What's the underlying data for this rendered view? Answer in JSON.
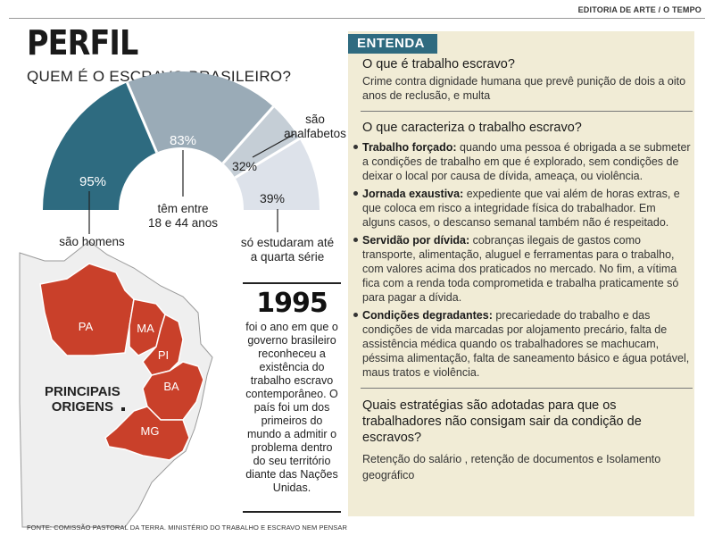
{
  "credit": "EDITORIA DE ARTE / O TEMPO",
  "title": "PERFIL",
  "subtitle": "QUEM É O ESCRAVO BRASILEIRO?",
  "stats": [
    {
      "value": "95%",
      "label": "são homens",
      "percent": 95,
      "color": "#2e6b80"
    },
    {
      "value": "83%",
      "label": "têm entre 18 e 44 anos",
      "percent": 83,
      "color": "#9aabb7"
    },
    {
      "value": "32%",
      "label": "são analfabetos",
      "percent": 32,
      "color": "#c5ced6"
    },
    {
      "value": "39%",
      "label": "só estudaram até a quarta série",
      "percent": 39,
      "color": "#dde2ea"
    }
  ],
  "stat_labels": {
    "homens": "são homens",
    "idade_l1": "têm entre",
    "idade_l2": "18 e 44 anos",
    "analf_l1": "são",
    "analf_l2": "analfabetos",
    "estudo_l1": "só estudaram até",
    "estudo_l2": "a quarta série"
  },
  "year": "1995",
  "year_text": "foi o ano em que o governo brasileiro reconheceu a existência do trabalho escravo contemporâneo. O país foi um dos primeiros do mundo a admitir o problema dentro do seu território diante das Nações Unidas.",
  "map": {
    "title_l1": "PRINCIPAIS",
    "title_l2": "ORIGENS",
    "states": [
      "PA",
      "MA",
      "PI",
      "BA",
      "MG"
    ],
    "highlight_color": "#c9402a",
    "base_color": "#efefef"
  },
  "source": "FONTE: COMISSÃO PASTORAL DA TERRA. MINISTÉRIO DO TRABALHO E ESCRAVO NEM PENSAR",
  "panel": {
    "tag": "ENTENDA",
    "q1": "O que é trabalho escravo?",
    "a1": "Crime contra dignidade humana que prevê punição de dois a oito anos de reclusão, e multa",
    "q2": "O que caracteriza o trabalho escravo?",
    "items": [
      {
        "term": "Trabalho forçado:",
        "text": " quando uma pessoa é obrigada a se submeter a condições de trabalho em que é explorado, sem condições de deixar o local por causa de dívida, ameaça, ou violência."
      },
      {
        "term": "Jornada exaustiva:",
        "text": " expediente que vai além de horas extras, e que coloca em risco a integridade física do trabalhador. Em alguns casos, o descanso semanal também não é respeitado."
      },
      {
        "term": "Servidão por dívida:",
        "text": " cobranças ilegais de gastos como transporte, alimentação, aluguel e ferramentas para o trabalho, com valores acima dos praticados no mercado. No fim, a vítima fica com a renda toda comprometida e trabalha praticamente só para pagar a dívida."
      },
      {
        "term": "Condições degradantes:",
        "text": " precariedade do trabalho e das condições de vida marcadas por alojamento precário, falta de assistência médica quando os trabalhadores se machucam, péssima alimentação, falta de saneamento básico e água potável, maus tratos e violência."
      }
    ],
    "q3": "Quais estratégias são adotadas para que os trabalhadores não consigam sair da condição de escravos?",
    "a3": "Retenção do salário , retenção de documentos e Isolamento geográfico",
    "color": "#2f6b80",
    "background": "#f1ecd6"
  }
}
